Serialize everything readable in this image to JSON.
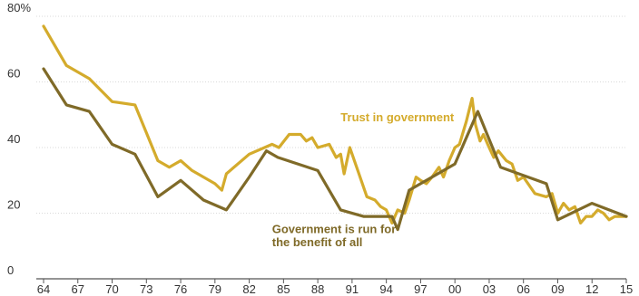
{
  "chart_data": {
    "type": "line",
    "title": "",
    "xlabel": "",
    "ylabel": "",
    "xlim": [
      1964,
      2015
    ],
    "ylim": [
      0,
      80
    ],
    "grid": true,
    "x_tick_labels": [
      {
        "x": 1964,
        "label": "64"
      },
      {
        "x": 1967,
        "label": "67"
      },
      {
        "x": 1970,
        "label": "70"
      },
      {
        "x": 1973,
        "label": "73"
      },
      {
        "x": 1976,
        "label": "76"
      },
      {
        "x": 1979,
        "label": "79"
      },
      {
        "x": 1982,
        "label": "82"
      },
      {
        "x": 1985,
        "label": "85"
      },
      {
        "x": 1988,
        "label": "88"
      },
      {
        "x": 1991,
        "label": "91"
      },
      {
        "x": 1994,
        "label": "94"
      },
      {
        "x": 1997,
        "label": "97"
      },
      {
        "x": 2000,
        "label": "00"
      },
      {
        "x": 2003,
        "label": "03"
      },
      {
        "x": 2006,
        "label": "06"
      },
      {
        "x": 2009,
        "label": "09"
      },
      {
        "x": 2012,
        "label": "12"
      },
      {
        "x": 2015,
        "label": "15"
      }
    ],
    "y_tick_labels": [
      {
        "y": 0,
        "label": "0"
      },
      {
        "y": 20,
        "label": "20"
      },
      {
        "y": 40,
        "label": "40"
      },
      {
        "y": 60,
        "label": "60"
      },
      {
        "y": 80,
        "label": "80%"
      }
    ],
    "series": [
      {
        "name": "Trust in government",
        "color": "#d4ab2c",
        "points": [
          [
            1964,
            77
          ],
          [
            1966,
            65
          ],
          [
            1968,
            61
          ],
          [
            1970,
            54
          ],
          [
            1972,
            53
          ],
          [
            1974,
            36
          ],
          [
            1975,
            34
          ],
          [
            1976,
            36
          ],
          [
            1977,
            33
          ],
          [
            1978,
            31
          ],
          [
            1979,
            29
          ],
          [
            1979.6,
            27
          ],
          [
            1980,
            32
          ],
          [
            1982,
            38
          ],
          [
            1984,
            41
          ],
          [
            1984.6,
            40
          ],
          [
            1985.5,
            44
          ],
          [
            1986.5,
            44
          ],
          [
            1987,
            42
          ],
          [
            1987.5,
            43
          ],
          [
            1988,
            40
          ],
          [
            1989,
            41
          ],
          [
            1989.6,
            37
          ],
          [
            1990,
            38
          ],
          [
            1990.3,
            32
          ],
          [
            1990.8,
            40
          ],
          [
            1991.5,
            33
          ],
          [
            1992.3,
            25
          ],
          [
            1993,
            24
          ],
          [
            1993.5,
            22
          ],
          [
            1994,
            21
          ],
          [
            1994.5,
            17
          ],
          [
            1995,
            21
          ],
          [
            1995.6,
            20
          ],
          [
            1996,
            24
          ],
          [
            1996.6,
            31
          ],
          [
            1997,
            30
          ],
          [
            1997.5,
            29
          ],
          [
            1998,
            31
          ],
          [
            1998.6,
            34
          ],
          [
            1999,
            31
          ],
          [
            1999.5,
            36
          ],
          [
            2000,
            40
          ],
          [
            2000.4,
            41
          ],
          [
            2001,
            48
          ],
          [
            2001.5,
            55
          ],
          [
            2001.8,
            47
          ],
          [
            2002.2,
            42
          ],
          [
            2002.5,
            44
          ],
          [
            2003,
            40
          ],
          [
            2003.4,
            37
          ],
          [
            2003.8,
            39
          ],
          [
            2004.5,
            36
          ],
          [
            2005,
            35
          ],
          [
            2005.5,
            30
          ],
          [
            2006,
            31
          ],
          [
            2007,
            26
          ],
          [
            2008,
            25
          ],
          [
            2008.5,
            26
          ],
          [
            2009,
            20
          ],
          [
            2009.5,
            23
          ],
          [
            2010,
            21
          ],
          [
            2010.5,
            22
          ],
          [
            2011,
            17
          ],
          [
            2011.5,
            19
          ],
          [
            2012,
            19
          ],
          [
            2012.5,
            21
          ],
          [
            2013,
            20
          ],
          [
            2013.5,
            18
          ],
          [
            2014,
            19
          ],
          [
            2015,
            19
          ]
        ]
      },
      {
        "name": "Government is run for the benefit of all",
        "color": "#7f6a28",
        "points": [
          [
            1964,
            64
          ],
          [
            1966,
            53
          ],
          [
            1968,
            51
          ],
          [
            1970,
            41
          ],
          [
            1972,
            38
          ],
          [
            1974,
            25
          ],
          [
            1976,
            30
          ],
          [
            1978,
            24
          ],
          [
            1980,
            21
          ],
          [
            1982,
            31
          ],
          [
            1983.5,
            39
          ],
          [
            1984.5,
            37
          ],
          [
            1988,
            33
          ],
          [
            1990,
            21
          ],
          [
            1992,
            19
          ],
          [
            1994.5,
            19
          ],
          [
            1995,
            15
          ],
          [
            1996,
            27
          ],
          [
            2000,
            35
          ],
          [
            2002,
            51
          ],
          [
            2004,
            34
          ],
          [
            2008,
            29
          ],
          [
            2009,
            18
          ],
          [
            2012,
            23
          ],
          [
            2015,
            19
          ]
        ]
      }
    ],
    "annotations": [
      {
        "text": "Trust in government",
        "series": 0,
        "x": 1990,
        "y": 48
      },
      {
        "text": "Government  is run for",
        "series": 1,
        "x": 1984,
        "y": 14
      },
      {
        "text": "the benefit  of all",
        "series": 1,
        "x": 1984,
        "y": 10
      }
    ]
  }
}
